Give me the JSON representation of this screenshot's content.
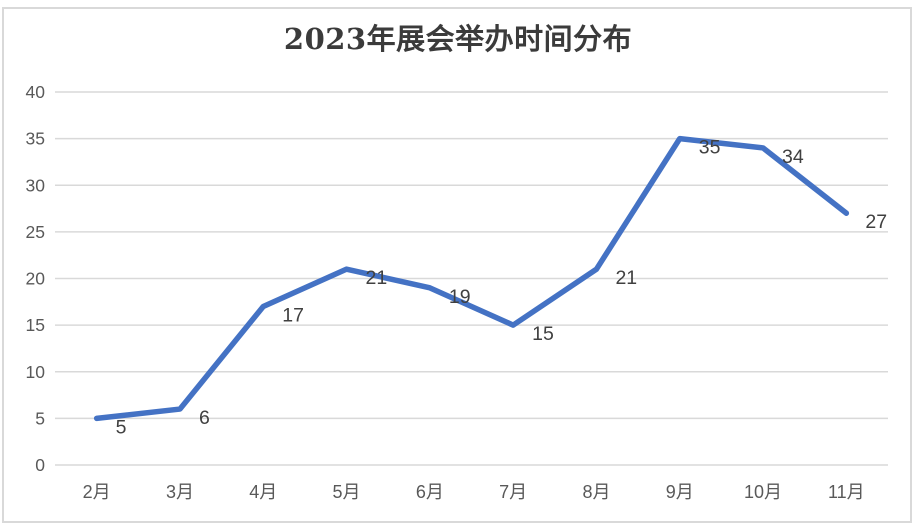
{
  "chart_data": {
    "type": "line",
    "title": "2023年展会举办时间分布",
    "categories": [
      "2月",
      "3月",
      "4月",
      "5月",
      "6月",
      "7月",
      "8月",
      "9月",
      "10月",
      "11月"
    ],
    "values": [
      5,
      6,
      17,
      21,
      19,
      15,
      21,
      35,
      34,
      27
    ],
    "xlabel": "",
    "ylabel": "",
    "ylim": [
      0,
      40
    ],
    "ytick_step": 5,
    "yticks": [
      0,
      5,
      10,
      15,
      20,
      25,
      30,
      35,
      40
    ],
    "grid": "horizontal",
    "legend_position": "none",
    "data_label_position": "right",
    "colors": {
      "series_line": "#4472C4",
      "gridline": "#D9D9D9",
      "chart_border": "#D9D9D9",
      "axis_tick_label": "#595959",
      "data_label": "#404040",
      "title": "#3B3B3B",
      "background": "#FFFFFF"
    }
  }
}
